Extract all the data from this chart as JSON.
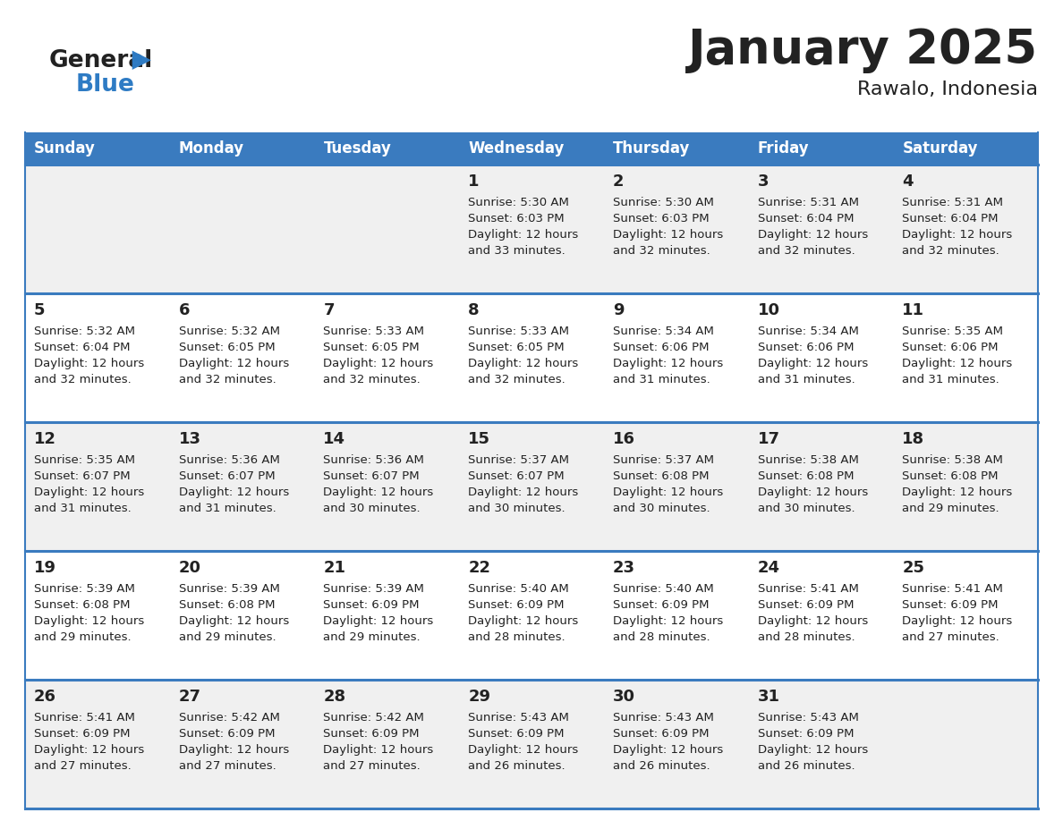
{
  "title": "January 2025",
  "subtitle": "Rawalo, Indonesia",
  "days_of_week": [
    "Sunday",
    "Monday",
    "Tuesday",
    "Wednesday",
    "Thursday",
    "Friday",
    "Saturday"
  ],
  "header_bg": "#3a7bbf",
  "header_text": "#ffffff",
  "cell_bg_odd": "#f0f0f0",
  "cell_bg_even": "#ffffff",
  "row_line_color": "#3a7bbf",
  "text_color": "#222222",
  "logo_general_color": "#222222",
  "logo_blue_color": "#2e7bc4",
  "calendar_data": [
    [
      null,
      null,
      null,
      {
        "day": 1,
        "sunrise": "5:30 AM",
        "sunset": "6:03 PM",
        "daylight": "12 hours and 33 minutes."
      },
      {
        "day": 2,
        "sunrise": "5:30 AM",
        "sunset": "6:03 PM",
        "daylight": "12 hours and 32 minutes."
      },
      {
        "day": 3,
        "sunrise": "5:31 AM",
        "sunset": "6:04 PM",
        "daylight": "12 hours and 32 minutes."
      },
      {
        "day": 4,
        "sunrise": "5:31 AM",
        "sunset": "6:04 PM",
        "daylight": "12 hours and 32 minutes."
      }
    ],
    [
      {
        "day": 5,
        "sunrise": "5:32 AM",
        "sunset": "6:04 PM",
        "daylight": "12 hours and 32 minutes."
      },
      {
        "day": 6,
        "sunrise": "5:32 AM",
        "sunset": "6:05 PM",
        "daylight": "12 hours and 32 minutes."
      },
      {
        "day": 7,
        "sunrise": "5:33 AM",
        "sunset": "6:05 PM",
        "daylight": "12 hours and 32 minutes."
      },
      {
        "day": 8,
        "sunrise": "5:33 AM",
        "sunset": "6:05 PM",
        "daylight": "12 hours and 32 minutes."
      },
      {
        "day": 9,
        "sunrise": "5:34 AM",
        "sunset": "6:06 PM",
        "daylight": "12 hours and 31 minutes."
      },
      {
        "day": 10,
        "sunrise": "5:34 AM",
        "sunset": "6:06 PM",
        "daylight": "12 hours and 31 minutes."
      },
      {
        "day": 11,
        "sunrise": "5:35 AM",
        "sunset": "6:06 PM",
        "daylight": "12 hours and 31 minutes."
      }
    ],
    [
      {
        "day": 12,
        "sunrise": "5:35 AM",
        "sunset": "6:07 PM",
        "daylight": "12 hours and 31 minutes."
      },
      {
        "day": 13,
        "sunrise": "5:36 AM",
        "sunset": "6:07 PM",
        "daylight": "12 hours and 31 minutes."
      },
      {
        "day": 14,
        "sunrise": "5:36 AM",
        "sunset": "6:07 PM",
        "daylight": "12 hours and 30 minutes."
      },
      {
        "day": 15,
        "sunrise": "5:37 AM",
        "sunset": "6:07 PM",
        "daylight": "12 hours and 30 minutes."
      },
      {
        "day": 16,
        "sunrise": "5:37 AM",
        "sunset": "6:08 PM",
        "daylight": "12 hours and 30 minutes."
      },
      {
        "day": 17,
        "sunrise": "5:38 AM",
        "sunset": "6:08 PM",
        "daylight": "12 hours and 30 minutes."
      },
      {
        "day": 18,
        "sunrise": "5:38 AM",
        "sunset": "6:08 PM",
        "daylight": "12 hours and 29 minutes."
      }
    ],
    [
      {
        "day": 19,
        "sunrise": "5:39 AM",
        "sunset": "6:08 PM",
        "daylight": "12 hours and 29 minutes."
      },
      {
        "day": 20,
        "sunrise": "5:39 AM",
        "sunset": "6:08 PM",
        "daylight": "12 hours and 29 minutes."
      },
      {
        "day": 21,
        "sunrise": "5:39 AM",
        "sunset": "6:09 PM",
        "daylight": "12 hours and 29 minutes."
      },
      {
        "day": 22,
        "sunrise": "5:40 AM",
        "sunset": "6:09 PM",
        "daylight": "12 hours and 28 minutes."
      },
      {
        "day": 23,
        "sunrise": "5:40 AM",
        "sunset": "6:09 PM",
        "daylight": "12 hours and 28 minutes."
      },
      {
        "day": 24,
        "sunrise": "5:41 AM",
        "sunset": "6:09 PM",
        "daylight": "12 hours and 28 minutes."
      },
      {
        "day": 25,
        "sunrise": "5:41 AM",
        "sunset": "6:09 PM",
        "daylight": "12 hours and 27 minutes."
      }
    ],
    [
      {
        "day": 26,
        "sunrise": "5:41 AM",
        "sunset": "6:09 PM",
        "daylight": "12 hours and 27 minutes."
      },
      {
        "day": 27,
        "sunrise": "5:42 AM",
        "sunset": "6:09 PM",
        "daylight": "12 hours and 27 minutes."
      },
      {
        "day": 28,
        "sunrise": "5:42 AM",
        "sunset": "6:09 PM",
        "daylight": "12 hours and 27 minutes."
      },
      {
        "day": 29,
        "sunrise": "5:43 AM",
        "sunset": "6:09 PM",
        "daylight": "12 hours and 26 minutes."
      },
      {
        "day": 30,
        "sunrise": "5:43 AM",
        "sunset": "6:09 PM",
        "daylight": "12 hours and 26 minutes."
      },
      {
        "day": 31,
        "sunrise": "5:43 AM",
        "sunset": "6:09 PM",
        "daylight": "12 hours and 26 minutes."
      },
      null
    ]
  ]
}
